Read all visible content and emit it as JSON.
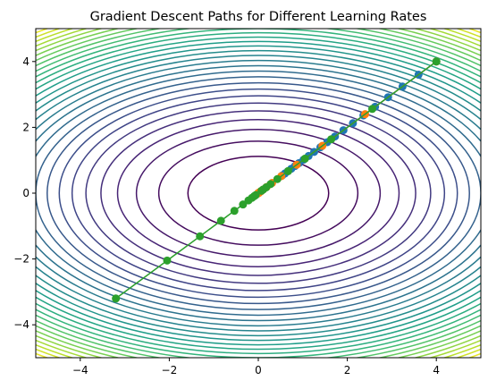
{
  "chart_data": {
    "type": "contour-line-scatter",
    "title": "Gradient Descent Paths for Different Learning Rates",
    "xlabel": "",
    "ylabel": "",
    "xlim": [
      -5,
      5
    ],
    "ylim": [
      -5,
      5
    ],
    "xticks": [
      -4,
      -2,
      0,
      2,
      4
    ],
    "yticks": [
      -4,
      -2,
      0,
      2,
      4
    ],
    "xtick_labels": [
      "−4",
      "−2",
      "0",
      "2",
      "4"
    ],
    "ytick_labels": [
      "−4",
      "−2",
      "0",
      "2",
      "4"
    ],
    "grid": false,
    "legend": "none",
    "contour": {
      "function": "x^2/2 + y^2",
      "levels": [
        1.25,
        2.5,
        3.75,
        5,
        6.25,
        7.5,
        8.75,
        10,
        11.25,
        12.5,
        13.75,
        15,
        16.25,
        17.5,
        18.75,
        20,
        21.25,
        22.5,
        23.75,
        25,
        26.25,
        27.5,
        28.75,
        30,
        31.25,
        32.5,
        33.75,
        35,
        36.25,
        37.5
      ],
      "colormap": [
        "#440154",
        "#482878",
        "#3e4989",
        "#31688e",
        "#26828e",
        "#1f9e89",
        "#35b779",
        "#6ece58",
        "#b5de2b",
        "#fde725"
      ]
    },
    "series": [
      {
        "color": "#1f77b4",
        "points": [
          [
            4.0,
            4.0
          ],
          [
            3.6,
            3.6
          ],
          [
            3.24,
            3.24
          ],
          [
            2.916,
            2.916
          ],
          [
            2.624,
            2.624
          ],
          [
            2.362,
            2.362
          ],
          [
            2.126,
            2.126
          ],
          [
            1.913,
            1.913
          ],
          [
            1.722,
            1.722
          ],
          [
            1.55,
            1.55
          ],
          [
            1.395,
            1.395
          ],
          [
            1.255,
            1.255
          ],
          [
            1.13,
            1.13
          ],
          [
            1.017,
            1.017
          ],
          [
            0.915,
            0.915
          ],
          [
            0.824,
            0.824
          ],
          [
            0.741,
            0.741
          ],
          [
            0.667,
            0.667
          ],
          [
            0.6,
            0.6
          ],
          [
            0.54,
            0.54
          ]
        ]
      },
      {
        "color": "#ff7f0e",
        "points": [
          [
            4.0,
            4.0
          ],
          [
            2.4,
            2.4
          ],
          [
            1.44,
            1.44
          ],
          [
            0.864,
            0.864
          ],
          [
            0.518,
            0.518
          ],
          [
            0.311,
            0.311
          ],
          [
            0.187,
            0.187
          ],
          [
            0.112,
            0.112
          ],
          [
            0.067,
            0.067
          ],
          [
            0.04,
            0.04
          ],
          [
            0.024,
            0.024
          ],
          [
            0.015,
            0.015
          ],
          [
            0.009,
            0.009
          ],
          [
            0.005,
            0.005
          ],
          [
            0.003,
            0.003
          ],
          [
            0.002,
            0.002
          ],
          [
            0.001,
            0.001
          ],
          [
            0.001,
            0.001
          ],
          [
            0.0,
            0.0
          ],
          [
            0.0,
            0.0
          ]
        ]
      },
      {
        "color": "#2ca02c",
        "points": [
          [
            4.0,
            4.0
          ],
          [
            -3.2,
            -3.2
          ],
          [
            2.56,
            2.56
          ],
          [
            -2.048,
            -2.048
          ],
          [
            1.638,
            1.638
          ],
          [
            -1.311,
            -1.311
          ],
          [
            1.049,
            1.049
          ],
          [
            -0.839,
            -0.839
          ],
          [
            0.671,
            0.671
          ],
          [
            -0.537,
            -0.537
          ],
          [
            0.429,
            0.429
          ],
          [
            -0.344,
            -0.344
          ],
          [
            0.275,
            0.275
          ],
          [
            -0.22,
            -0.22
          ],
          [
            0.176,
            0.176
          ],
          [
            -0.141,
            -0.141
          ],
          [
            0.113,
            0.113
          ],
          [
            -0.09,
            -0.09
          ],
          [
            0.072,
            0.072
          ],
          [
            -0.058,
            -0.058
          ]
        ]
      }
    ]
  }
}
